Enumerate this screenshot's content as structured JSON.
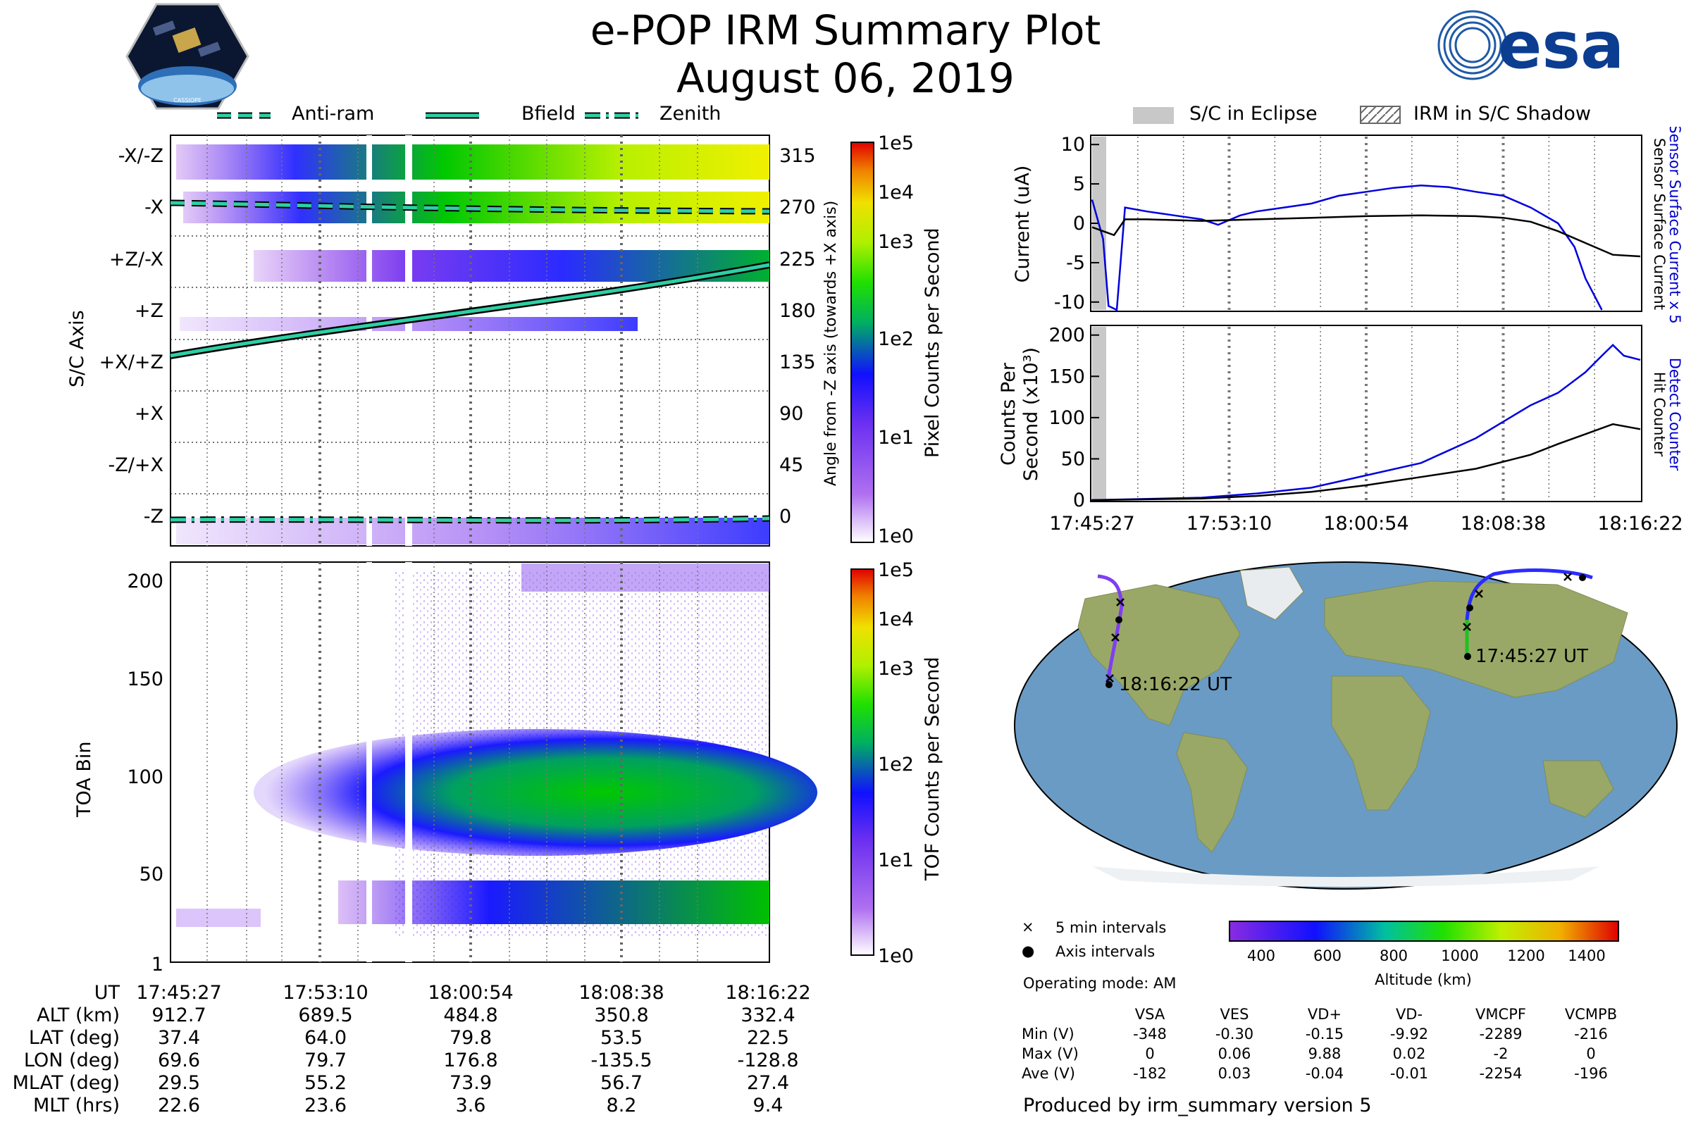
{
  "header": {
    "title": "e-POP IRM Summary Plot",
    "date": "August 06, 2019",
    "logo_left_text": "CASSIOPE",
    "logo_right_text": "esa"
  },
  "top_left_legend": [
    {
      "label": "Anti-ram",
      "style": "dashed"
    },
    {
      "label": "Bfield",
      "style": "solid"
    },
    {
      "label": "Zenith",
      "style": "dashdot"
    }
  ],
  "top_right_legend": [
    {
      "label": "S/C in Eclipse"
    },
    {
      "label": "IRM in S/C Shadow"
    }
  ],
  "chart_data": [
    {
      "type": "heatmap",
      "name": "Pixel Counts Spectrogram",
      "ylabel": "S/C Axis",
      "y2label": "Angle from -Z axis (towards +X axis)",
      "y_categories": [
        "-X/-Z",
        "-X",
        "+Z/-X",
        "+Z",
        "+X/+Z",
        "+X",
        "-Z/+X",
        "-Z"
      ],
      "y2_ticks": [
        "315",
        "270",
        "225",
        "180",
        "135",
        "90",
        "45",
        "0"
      ],
      "x_ticks": [
        "17:45:27",
        "17:53:10",
        "18:00:54",
        "18:08:38",
        "18:16:22"
      ],
      "colorbar_label": "Pixel Counts per Second",
      "colorbar_ticks": [
        "1e5",
        "1e4",
        "1e3",
        "1e2",
        "1e1",
        "1e0"
      ],
      "lines": [
        {
          "name": "Anti-ram",
          "angle_start": 275,
          "angle_end": 268
        },
        {
          "name": "Bfield",
          "angle_start": 155,
          "angle_end": 225
        },
        {
          "name": "Zenith",
          "angle_start": 2,
          "angle_end": 0
        }
      ]
    },
    {
      "type": "heatmap",
      "name": "TOF Spectrogram",
      "ylabel": "TOA Bin",
      "y_ticks": [
        "200",
        "150",
        "100",
        "50",
        "1"
      ],
      "ylim": [
        1,
        210
      ],
      "colorbar_label": "TOF Counts per Second",
      "colorbar_ticks": [
        "1e5",
        "1e4",
        "1e3",
        "1e2",
        "1e1",
        "1e0"
      ]
    },
    {
      "type": "line",
      "name": "Current",
      "ylabel": "Current (uA)",
      "y_ticks": [
        "10",
        "5",
        "0",
        "-5",
        "-10"
      ],
      "ylim": [
        -11,
        11
      ],
      "right_labels": [
        "Sensor Surface Current x 5",
        "Sensor Surface Current"
      ],
      "series": [
        {
          "name": "Sensor Surface Current x 5",
          "color": "#0000dd",
          "x": [
            0,
            0.02,
            0.03,
            0.045,
            0.06,
            0.1,
            0.15,
            0.2,
            0.23,
            0.27,
            0.3,
            0.35,
            0.4,
            0.45,
            0.5,
            0.55,
            0.6,
            0.65,
            0.7,
            0.75,
            0.8,
            0.85,
            0.88,
            0.9,
            0.93
          ],
          "y": [
            3,
            -2,
            -10.5,
            -11,
            2,
            1.5,
            1,
            0.5,
            -0.2,
            1,
            1.5,
            2,
            2.5,
            3.5,
            4,
            4.5,
            4.8,
            4.6,
            4,
            3.5,
            2,
            0,
            -3,
            -7,
            -11
          ]
        },
        {
          "name": "Sensor Surface Current",
          "color": "#000000",
          "x": [
            0,
            0.02,
            0.04,
            0.06,
            0.1,
            0.2,
            0.3,
            0.4,
            0.5,
            0.6,
            0.7,
            0.75,
            0.8,
            0.85,
            0.9,
            0.95,
            1
          ],
          "y": [
            -0.5,
            -1,
            -1.5,
            0.5,
            0.5,
            0.3,
            0.5,
            0.7,
            0.9,
            1,
            0.9,
            0.7,
            0.2,
            -1,
            -2.5,
            -4,
            -4.2
          ]
        }
      ]
    },
    {
      "type": "line",
      "name": "Counts",
      "ylabel": "Counts Per Second (x10³)",
      "y_ticks": [
        "200",
        "150",
        "100",
        "50",
        "0"
      ],
      "ylim": [
        0,
        210
      ],
      "x_ticks": [
        "17:45:27",
        "17:53:10",
        "18:00:54",
        "18:08:38",
        "18:16:22"
      ],
      "right_labels": [
        "Detect Counter",
        "Hit Counter"
      ],
      "series": [
        {
          "name": "Detect Counter",
          "color": "#0000dd",
          "x": [
            0,
            0.2,
            0.3,
            0.4,
            0.5,
            0.6,
            0.65,
            0.7,
            0.75,
            0.8,
            0.85,
            0.9,
            0.93,
            0.95,
            0.97,
            1
          ],
          "y": [
            0,
            3,
            8,
            15,
            30,
            45,
            60,
            75,
            95,
            115,
            130,
            155,
            175,
            188,
            175,
            170
          ]
        },
        {
          "name": "Hit Counter",
          "color": "#000000",
          "x": [
            0,
            0.2,
            0.3,
            0.4,
            0.5,
            0.6,
            0.7,
            0.8,
            0.85,
            0.9,
            0.95,
            1
          ],
          "y": [
            0,
            2,
            5,
            10,
            18,
            28,
            38,
            55,
            68,
            80,
            92,
            86
          ]
        }
      ]
    }
  ],
  "time_table": {
    "row_labels": [
      "UT",
      "ALT (km)",
      "LAT (deg)",
      "LON (deg)",
      "MLAT (deg)",
      "MLT (hrs)"
    ],
    "columns": [
      [
        "17:45:27",
        "912.7",
        "37.4",
        "69.6",
        "29.5",
        "22.6"
      ],
      [
        "17:53:10",
        "689.5",
        "64.0",
        "79.7",
        "55.2",
        "23.6"
      ],
      [
        "18:00:54",
        "484.8",
        "79.8",
        "176.8",
        "73.9",
        "3.6"
      ],
      [
        "18:08:38",
        "350.8",
        "53.5",
        "-135.5",
        "56.7",
        "8.2"
      ],
      [
        "18:16:22",
        "332.4",
        "22.5",
        "-128.8",
        "27.4",
        "9.4"
      ]
    ]
  },
  "map": {
    "start_label": "17:45:27 UT",
    "end_label": "18:16:22 UT",
    "legend_5min": "5 min intervals",
    "legend_axis": "Axis intervals",
    "altitude_label": "Altitude (km)",
    "altitude_ticks": [
      "400",
      "600",
      "800",
      "1000",
      "1200",
      "1400"
    ]
  },
  "operating_mode": "Operating mode: AM",
  "voltage_table": {
    "headers": [
      "VSA",
      "VES",
      "VD+",
      "VD-",
      "VMCPF",
      "VCMPB"
    ],
    "rows": [
      {
        "label": "Min (V)",
        "values": [
          "-348",
          "-0.30",
          "-0.15",
          "-9.92",
          "-2289",
          "-216"
        ]
      },
      {
        "label": "Max (V)",
        "values": [
          "0",
          "0.06",
          "9.88",
          "0.02",
          "-2",
          "0"
        ]
      },
      {
        "label": "Ave (V)",
        "values": [
          "-182",
          "0.03",
          "-0.04",
          "-0.01",
          "-2254",
          "-196"
        ]
      }
    ]
  },
  "footer": "Produced by irm_summary version 5"
}
